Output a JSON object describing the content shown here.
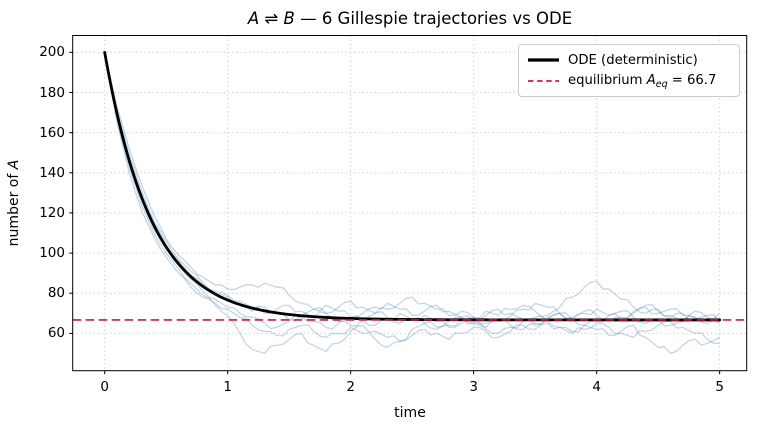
{
  "text": {
    "title_a": "A",
    "title_rel": " ⇌ ",
    "title_b": "B",
    "title_rest": " — 6 Gillespie trajectories vs ODE",
    "xlabel": "time",
    "ylabel_prefix": "number of ",
    "ylabel_var": "A",
    "legend_ode": "ODE (deterministic)",
    "legend_eq_prefix": "equilibrium ",
    "legend_eq_var": "A",
    "legend_eq_sub": "eq",
    "legend_eq_suffix": " = 66.7"
  },
  "colors": {
    "ode_line": "#000000",
    "equilibrium_line": "#DC143C",
    "trajectory_line": "#4682B4",
    "grid_line": "#c9c9c9",
    "spine": "#000000",
    "legend_border": "#cccccc"
  },
  "chart_data": {
    "type": "line",
    "title": "A ⇌ B — 6 Gillespie trajectories vs ODE",
    "xlabel": "time",
    "ylabel": "number of A",
    "xlim": [
      -0.26,
      5.22
    ],
    "ylim": [
      41.4,
      208.4
    ],
    "x_ticks": [
      0,
      1,
      2,
      3,
      4,
      5
    ],
    "y_ticks": [
      60,
      80,
      100,
      120,
      140,
      160,
      180,
      200
    ],
    "grid": true,
    "grid_style": "dotted",
    "legend_position": "upper right",
    "equilibrium": {
      "label": "equilibrium A_eq = 66.7",
      "value": 66.7,
      "style": "dashed",
      "line_width": 1.6
    },
    "ode": {
      "label": "ODE (deterministic)",
      "model": "A(t) = A_eq + (A0 - A_eq) * exp(-rate * t)",
      "A0": 200,
      "A_eq": 66.7,
      "rate": 2.6,
      "t_range": [
        0,
        5
      ],
      "line_width": 2.8
    },
    "trajectories": {
      "count": 6,
      "opacity": 0.33,
      "line_width": 1.3,
      "t_start": 0,
      "dt": 0.1,
      "series": [
        {
          "name": "trajectory-1",
          "values": [
            200,
            171,
            149,
            131,
            116,
            106,
            97,
            91,
            85,
            80,
            78,
            75,
            71,
            73,
            70,
            67,
            69,
            72,
            70,
            66,
            64,
            67,
            70,
            68,
            65,
            67,
            69,
            66,
            63,
            65,
            68,
            71,
            69,
            72,
            74,
            71,
            69,
            73,
            78,
            83,
            86,
            82,
            77,
            73,
            70,
            72,
            69,
            66,
            68,
            67,
            65
          ]
        },
        {
          "name": "trajectory-2",
          "values": [
            200,
            167,
            143,
            124,
            110,
            100,
            92,
            85,
            79,
            74,
            69,
            60,
            52,
            50,
            54,
            57,
            60,
            54,
            51,
            55,
            61,
            64,
            61,
            58,
            56,
            59,
            62,
            60,
            57,
            60,
            63,
            61,
            58,
            61,
            64,
            62,
            65,
            63,
            60,
            62,
            65,
            63,
            60,
            58,
            61,
            64,
            66,
            63,
            60,
            57,
            55
          ]
        },
        {
          "name": "trajectory-3",
          "values": [
            200,
            173,
            152,
            134,
            119,
            107,
            99,
            93,
            88,
            84,
            82,
            83,
            84,
            85,
            83,
            79,
            75,
            72,
            74,
            71,
            68,
            70,
            73,
            75,
            72,
            69,
            71,
            74,
            71,
            68,
            66,
            69,
            72,
            70,
            67,
            64,
            67,
            70,
            68,
            71,
            69,
            66,
            68,
            71,
            74,
            71,
            68,
            70,
            67,
            69,
            66
          ]
        },
        {
          "name": "trajectory-4",
          "values": [
            200,
            169,
            146,
            127,
            112,
            102,
            94,
            87,
            81,
            77,
            73,
            70,
            68,
            65,
            63,
            66,
            68,
            66,
            63,
            65,
            68,
            66,
            64,
            67,
            70,
            67,
            65,
            62,
            64,
            67,
            65,
            62,
            60,
            63,
            66,
            68,
            66,
            63,
            61,
            64,
            62,
            59,
            61,
            64,
            58,
            53,
            50,
            54,
            57,
            55,
            58
          ]
        },
        {
          "name": "trajectory-5",
          "values": [
            200,
            165,
            140,
            121,
            108,
            98,
            90,
            83,
            78,
            75,
            72,
            68,
            64,
            61,
            59,
            62,
            64,
            61,
            58,
            60,
            63,
            60,
            57,
            53,
            56,
            62,
            65,
            63,
            66,
            68,
            65,
            63,
            66,
            69,
            72,
            75,
            73,
            70,
            67,
            70,
            72,
            69,
            67,
            70,
            73,
            70,
            72,
            69,
            71,
            68,
            70
          ]
        },
        {
          "name": "trajectory-6",
          "values": [
            200,
            170,
            147,
            129,
            115,
            104,
            96,
            89,
            84,
            81,
            79,
            76,
            73,
            70,
            72,
            74,
            71,
            68,
            70,
            73,
            76,
            73,
            70,
            72,
            75,
            78,
            75,
            72,
            69,
            71,
            68,
            65,
            67,
            64,
            62,
            65,
            68,
            70,
            67,
            64,
            66,
            69,
            71,
            68,
            65,
            67,
            64,
            66,
            68,
            65,
            67
          ]
        }
      ]
    }
  }
}
